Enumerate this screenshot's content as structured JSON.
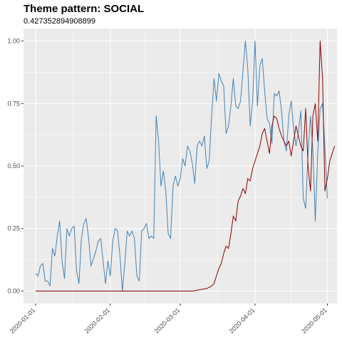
{
  "chart_data": {
    "type": "line",
    "title": "Theme pattern: SOCIAL",
    "subtitle": "0.427352894908899",
    "xlabel": "",
    "ylabel": "",
    "x_range": [
      "2019-12-27",
      "2020-05-05"
    ],
    "ylim": [
      -0.05,
      1.05
    ],
    "x_ticks": [
      "2020-01-01",
      "2020-02-01",
      "2020-03-01",
      "2020-04-01",
      "2020-05-01"
    ],
    "y_ticks": [
      0.0,
      0.25,
      0.5,
      0.75,
      1.0
    ],
    "y_tick_labels": [
      "0.00",
      "0.25",
      "0.50",
      "0.75",
      "1.00"
    ],
    "background": "#ebebeb",
    "grid": true,
    "series": [
      {
        "color": "#4682b4",
        "points": [
          [
            "2020-01-01",
            0.07
          ],
          [
            "2020-01-02",
            0.06
          ],
          [
            "2020-01-03",
            0.1
          ],
          [
            "2020-01-04",
            0.11
          ],
          [
            "2020-01-05",
            0.04
          ],
          [
            "2020-01-06",
            0.04
          ],
          [
            "2020-01-07",
            0.02
          ],
          [
            "2020-01-08",
            0.17
          ],
          [
            "2020-01-09",
            0.14
          ],
          [
            "2020-01-10",
            0.22
          ],
          [
            "2020-01-11",
            0.28
          ],
          [
            "2020-01-12",
            0.12
          ],
          [
            "2020-01-13",
            0.05
          ],
          [
            "2020-01-14",
            0.25
          ],
          [
            "2020-01-15",
            0.22
          ],
          [
            "2020-01-16",
            0.25
          ],
          [
            "2020-01-17",
            0.26
          ],
          [
            "2020-01-18",
            0.08
          ],
          [
            "2020-01-19",
            0.03
          ],
          [
            "2020-01-20",
            0.21
          ],
          [
            "2020-01-21",
            0.27
          ],
          [
            "2020-01-22",
            0.29
          ],
          [
            "2020-01-23",
            0.21
          ],
          [
            "2020-01-24",
            0.1
          ],
          [
            "2020-01-25",
            0.13
          ],
          [
            "2020-01-26",
            0.16
          ],
          [
            "2020-01-27",
            0.2
          ],
          [
            "2020-01-28",
            0.21
          ],
          [
            "2020-01-29",
            0.12
          ],
          [
            "2020-01-30",
            0.03
          ],
          [
            "2020-01-31",
            0.12
          ],
          [
            "2020-02-01",
            0.06
          ],
          [
            "2020-02-02",
            0.2
          ],
          [
            "2020-02-03",
            0.25
          ],
          [
            "2020-02-04",
            0.24
          ],
          [
            "2020-02-05",
            0.14
          ],
          [
            "2020-02-06",
            0.0
          ],
          [
            "2020-02-07",
            0.11
          ],
          [
            "2020-02-08",
            0.24
          ],
          [
            "2020-02-09",
            0.22
          ],
          [
            "2020-02-10",
            0.24
          ],
          [
            "2020-02-11",
            0.21
          ],
          [
            "2020-02-12",
            0.06
          ],
          [
            "2020-02-13",
            0.04
          ],
          [
            "2020-02-14",
            0.24
          ],
          [
            "2020-02-15",
            0.25
          ],
          [
            "2020-02-16",
            0.27
          ],
          [
            "2020-02-17",
            0.21
          ],
          [
            "2020-02-18",
            0.22
          ],
          [
            "2020-02-19",
            0.21
          ],
          [
            "2020-02-20",
            0.7
          ],
          [
            "2020-02-21",
            0.6
          ],
          [
            "2020-02-22",
            0.42
          ],
          [
            "2020-02-23",
            0.48
          ],
          [
            "2020-02-24",
            0.4
          ],
          [
            "2020-02-25",
            0.23
          ],
          [
            "2020-02-26",
            0.21
          ],
          [
            "2020-02-27",
            0.42
          ],
          [
            "2020-02-28",
            0.46
          ],
          [
            "2020-02-29",
            0.42
          ],
          [
            "2020-03-01",
            0.45
          ],
          [
            "2020-03-02",
            0.53
          ],
          [
            "2020-03-03",
            0.5
          ],
          [
            "2020-03-04",
            0.58
          ],
          [
            "2020-03-05",
            0.56
          ],
          [
            "2020-03-06",
            0.51
          ],
          [
            "2020-03-07",
            0.43
          ],
          [
            "2020-03-08",
            0.58
          ],
          [
            "2020-03-09",
            0.6
          ],
          [
            "2020-03-10",
            0.58
          ],
          [
            "2020-03-11",
            0.62
          ],
          [
            "2020-03-12",
            0.49
          ],
          [
            "2020-03-13",
            0.52
          ],
          [
            "2020-03-14",
            0.7
          ],
          [
            "2020-03-15",
            0.85
          ],
          [
            "2020-03-16",
            0.76
          ],
          [
            "2020-03-17",
            0.87
          ],
          [
            "2020-03-18",
            0.84
          ],
          [
            "2020-03-19",
            0.82
          ],
          [
            "2020-03-20",
            0.63
          ],
          [
            "2020-03-21",
            0.66
          ],
          [
            "2020-03-22",
            0.74
          ],
          [
            "2020-03-23",
            0.85
          ],
          [
            "2020-03-24",
            0.74
          ],
          [
            "2020-03-25",
            0.73
          ],
          [
            "2020-03-26",
            0.76
          ],
          [
            "2020-03-27",
            0.88
          ],
          [
            "2020-03-28",
            1.0
          ],
          [
            "2020-03-29",
            0.89
          ],
          [
            "2020-03-30",
            0.66
          ],
          [
            "2020-03-31",
            0.76
          ],
          [
            "2020-04-01",
            1.0
          ],
          [
            "2020-04-02",
            0.74
          ],
          [
            "2020-04-03",
            0.9
          ],
          [
            "2020-04-04",
            0.93
          ],
          [
            "2020-04-05",
            0.8
          ],
          [
            "2020-04-06",
            0.69
          ],
          [
            "2020-04-07",
            0.67
          ],
          [
            "2020-04-08",
            0.59
          ],
          [
            "2020-04-09",
            0.79
          ],
          [
            "2020-04-10",
            0.78
          ],
          [
            "2020-04-11",
            0.8
          ],
          [
            "2020-04-12",
            0.72
          ],
          [
            "2020-04-13",
            0.6
          ],
          [
            "2020-04-14",
            0.56
          ],
          [
            "2020-04-15",
            0.7
          ],
          [
            "2020-04-16",
            0.76
          ],
          [
            "2020-04-17",
            0.65
          ],
          [
            "2020-04-18",
            0.58
          ],
          [
            "2020-04-19",
            0.64
          ],
          [
            "2020-04-20",
            0.72
          ],
          [
            "2020-04-21",
            0.37
          ],
          [
            "2020-04-22",
            0.33
          ],
          [
            "2020-04-23",
            0.55
          ],
          [
            "2020-04-24",
            0.7
          ],
          [
            "2020-04-25",
            0.56
          ],
          [
            "2020-04-26",
            0.28
          ],
          [
            "2020-04-27",
            0.55
          ],
          [
            "2020-04-28",
            0.73
          ],
          [
            "2020-04-29",
            0.75
          ],
          [
            "2020-04-30",
            0.57
          ],
          [
            "2020-05-01",
            0.37
          ]
        ]
      },
      {
        "color": "#8b0000",
        "points": [
          [
            "2020-01-01",
            0.0
          ],
          [
            "2020-02-01",
            0.0
          ],
          [
            "2020-03-01",
            0.0
          ],
          [
            "2020-03-06",
            0.0
          ],
          [
            "2020-03-08",
            0.003
          ],
          [
            "2020-03-10",
            0.007
          ],
          [
            "2020-03-12",
            0.01
          ],
          [
            "2020-03-14",
            0.02
          ],
          [
            "2020-03-15",
            0.03
          ],
          [
            "2020-03-16",
            0.06
          ],
          [
            "2020-03-17",
            0.09
          ],
          [
            "2020-03-18",
            0.11
          ],
          [
            "2020-03-19",
            0.15
          ],
          [
            "2020-03-20",
            0.18
          ],
          [
            "2020-03-21",
            0.17
          ],
          [
            "2020-03-22",
            0.23
          ],
          [
            "2020-03-23",
            0.3
          ],
          [
            "2020-03-24",
            0.28
          ],
          [
            "2020-03-25",
            0.36
          ],
          [
            "2020-03-26",
            0.38
          ],
          [
            "2020-03-27",
            0.41
          ],
          [
            "2020-03-28",
            0.39
          ],
          [
            "2020-03-29",
            0.45
          ],
          [
            "2020-03-30",
            0.44
          ],
          [
            "2020-03-31",
            0.49
          ],
          [
            "2020-04-01",
            0.52
          ],
          [
            "2020-04-02",
            0.55
          ],
          [
            "2020-04-03",
            0.58
          ],
          [
            "2020-04-04",
            0.63
          ],
          [
            "2020-04-05",
            0.65
          ],
          [
            "2020-04-06",
            0.6
          ],
          [
            "2020-04-07",
            0.55
          ],
          [
            "2020-04-08",
            0.66
          ],
          [
            "2020-04-09",
            0.7
          ],
          [
            "2020-04-10",
            0.69
          ],
          [
            "2020-04-11",
            0.65
          ],
          [
            "2020-04-12",
            0.62
          ],
          [
            "2020-04-13",
            0.6
          ],
          [
            "2020-04-14",
            0.58
          ],
          [
            "2020-04-15",
            0.6
          ],
          [
            "2020-04-16",
            0.54
          ],
          [
            "2020-04-17",
            0.6
          ],
          [
            "2020-04-18",
            0.66
          ],
          [
            "2020-04-19",
            0.62
          ],
          [
            "2020-04-20",
            0.58
          ],
          [
            "2020-04-21",
            0.56
          ],
          [
            "2020-04-22",
            0.73
          ],
          [
            "2020-04-23",
            0.5
          ],
          [
            "2020-04-24",
            0.4
          ],
          [
            "2020-04-25",
            0.7
          ],
          [
            "2020-04-26",
            0.75
          ],
          [
            "2020-04-27",
            0.6
          ],
          [
            "2020-04-28",
            1.0
          ],
          [
            "2020-04-29",
            0.85
          ],
          [
            "2020-04-30",
            0.4
          ],
          [
            "2020-05-01",
            0.45
          ],
          [
            "2020-05-02",
            0.52
          ],
          [
            "2020-05-03",
            0.55
          ],
          [
            "2020-05-04",
            0.58
          ]
        ]
      }
    ]
  }
}
